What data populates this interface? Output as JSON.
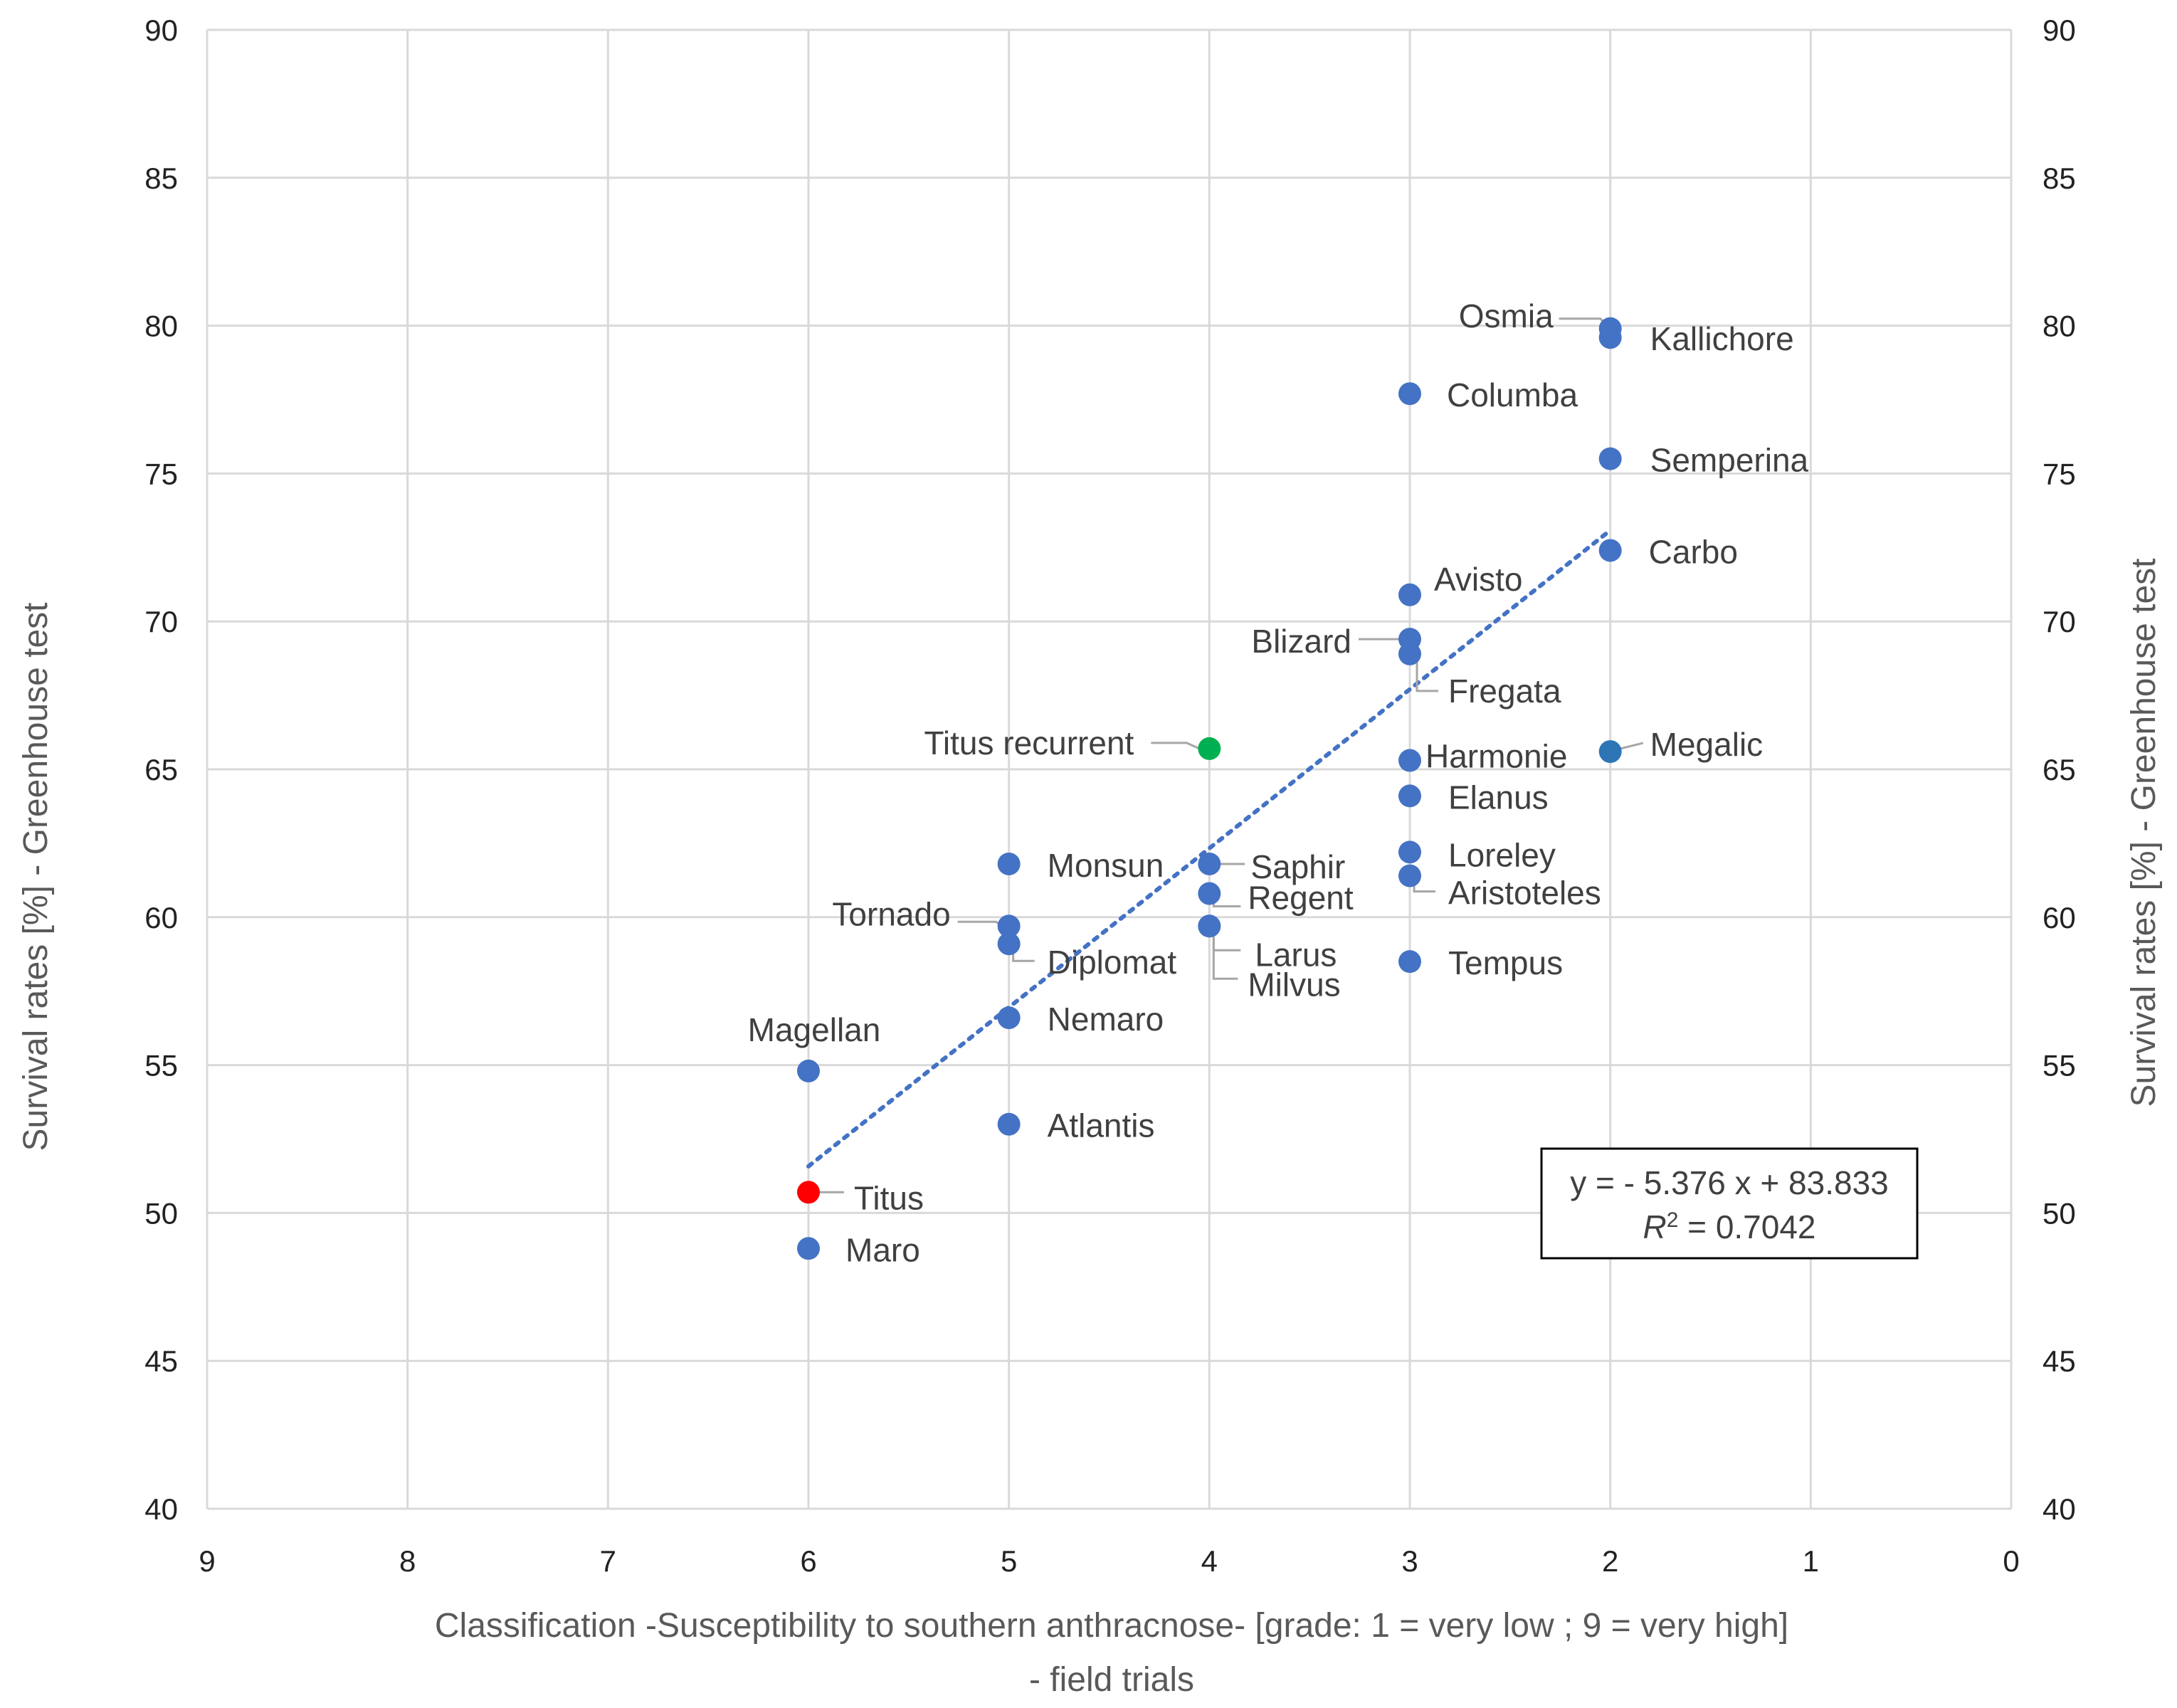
{
  "chart_data": {
    "type": "scatter",
    "title": "",
    "xlabel_line1": "Classification -Susceptibility to southern anthracnose- [grade: 1 = very low ; 9 = very high]",
    "xlabel_line2": "- field trials",
    "ylabel": "Survival rates [%]  - Greenhouse test",
    "ylabel_right": "Survival rates [%]  - Greenhouse test",
    "xlim": [
      0,
      9
    ],
    "x_reversed": true,
    "ylim": [
      40,
      90
    ],
    "x_ticks": [
      "9",
      "8",
      "7",
      "6",
      "5",
      "4",
      "3",
      "2",
      "1",
      "0"
    ],
    "y_ticks": [
      "90",
      "85",
      "80",
      "75",
      "70",
      "65",
      "60",
      "55",
      "50",
      "45",
      "40"
    ],
    "grid": true,
    "colors": {
      "default": "#4472c4",
      "titus": "#ff0000",
      "titus_recurrent": "#00b050",
      "megalic": "#2e75b6"
    },
    "points": [
      {
        "name": "Osmia",
        "x": 2,
        "y": 79.9,
        "color": "#4472c4"
      },
      {
        "name": "Kallichore",
        "x": 2,
        "y": 79.6,
        "color": "#4472c4"
      },
      {
        "name": "Columba",
        "x": 3,
        "y": 77.7,
        "color": "#4472c4"
      },
      {
        "name": "Semperina",
        "x": 2,
        "y": 75.5,
        "color": "#4472c4"
      },
      {
        "name": "Carbo",
        "x": 2,
        "y": 72.4,
        "color": "#4472c4"
      },
      {
        "name": "Avisto",
        "x": 3,
        "y": 70.9,
        "color": "#4472c4"
      },
      {
        "name": "Blizard",
        "x": 3,
        "y": 69.4,
        "color": "#4472c4"
      },
      {
        "name": "Fregata",
        "x": 3,
        "y": 68.9,
        "color": "#4472c4"
      },
      {
        "name": "Titus recurrent",
        "x": 4,
        "y": 65.7,
        "color": "#00b050"
      },
      {
        "name": "Megalic",
        "x": 2,
        "y": 65.6,
        "color": "#2e75b6"
      },
      {
        "name": "Harmonie",
        "x": 3,
        "y": 65.3,
        "color": "#4472c4"
      },
      {
        "name": "Elanus",
        "x": 3,
        "y": 64.1,
        "color": "#4472c4"
      },
      {
        "name": "Loreley",
        "x": 3,
        "y": 62.2,
        "color": "#4472c4"
      },
      {
        "name": "Monsun",
        "x": 5,
        "y": 61.8,
        "color": "#4472c4"
      },
      {
        "name": "Saphir",
        "x": 4,
        "y": 61.8,
        "color": "#4472c4"
      },
      {
        "name": "Aristoteles",
        "x": 3,
        "y": 61.4,
        "color": "#4472c4"
      },
      {
        "name": "Regent",
        "x": 4,
        "y": 60.8,
        "color": "#4472c4"
      },
      {
        "name": "Tornado",
        "x": 5,
        "y": 59.7,
        "color": "#4472c4"
      },
      {
        "name": "Larus",
        "x": 4,
        "y": 59.7,
        "color": "#4472c4"
      },
      {
        "name": "Diplomat",
        "x": 5,
        "y": 59.1,
        "color": "#4472c4"
      },
      {
        "name": "Milvus",
        "x": 4,
        "y": 59.7,
        "color": "#4472c4"
      },
      {
        "name": "Tempus",
        "x": 3,
        "y": 58.5,
        "color": "#4472c4"
      },
      {
        "name": "Nemaro",
        "x": 5,
        "y": 56.6,
        "color": "#4472c4"
      },
      {
        "name": "Magellan",
        "x": 6,
        "y": 54.8,
        "color": "#4472c4"
      },
      {
        "name": "Atlantis",
        "x": 5,
        "y": 53.0,
        "color": "#4472c4"
      },
      {
        "name": "Titus",
        "x": 6,
        "y": 50.7,
        "color": "#ff0000"
      },
      {
        "name": "Maro",
        "x": 6,
        "y": 48.8,
        "color": "#4472c4"
      }
    ],
    "trendline": {
      "slope": -5.376,
      "intercept": 83.833,
      "x_from": 6,
      "x_to": 2
    },
    "equation": {
      "line1": "y  = - 5.376 x + 83.833",
      "r2_prefix": "R",
      "r2_sup": "2",
      "r2_value": " = 0.7042"
    }
  }
}
